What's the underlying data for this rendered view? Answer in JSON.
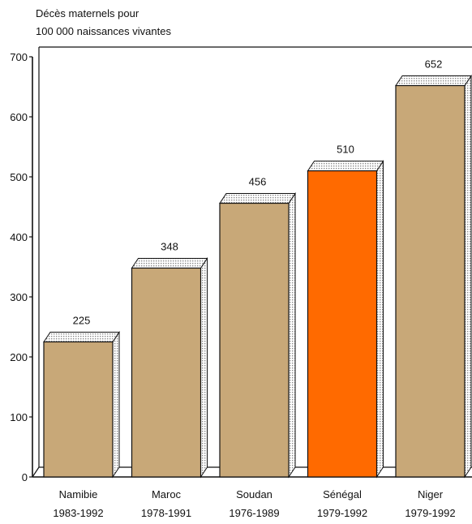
{
  "chart_data": {
    "type": "bar",
    "ylabel_lines": [
      "Décès maternels pour",
      "100 000 naissances vivantes"
    ],
    "categories": [
      {
        "name": "Namibie",
        "period": "1983-1992"
      },
      {
        "name": "Maroc",
        "period": "1978-1991"
      },
      {
        "name": "Soudan",
        "period": "1976-1989"
      },
      {
        "name": "Sénégal",
        "period": "1979-1992"
      },
      {
        "name": "Niger",
        "period": "1979-1992"
      }
    ],
    "values": [
      225,
      348,
      456,
      510,
      652
    ],
    "value_labels": [
      "225",
      "348",
      "456",
      "510",
      "652"
    ],
    "ylim": [
      0,
      700
    ],
    "yticks": [
      "0",
      "100",
      "200",
      "300",
      "400",
      "500",
      "600",
      "700"
    ],
    "grid": false,
    "colors": {
      "bar": "#C8A878",
      "highlight_bar": "#FF6A00",
      "highlight_index": 3,
      "bar_top": "#E8E8E8",
      "bar_side": "#D0D0D0",
      "outline": "#111111"
    }
  }
}
